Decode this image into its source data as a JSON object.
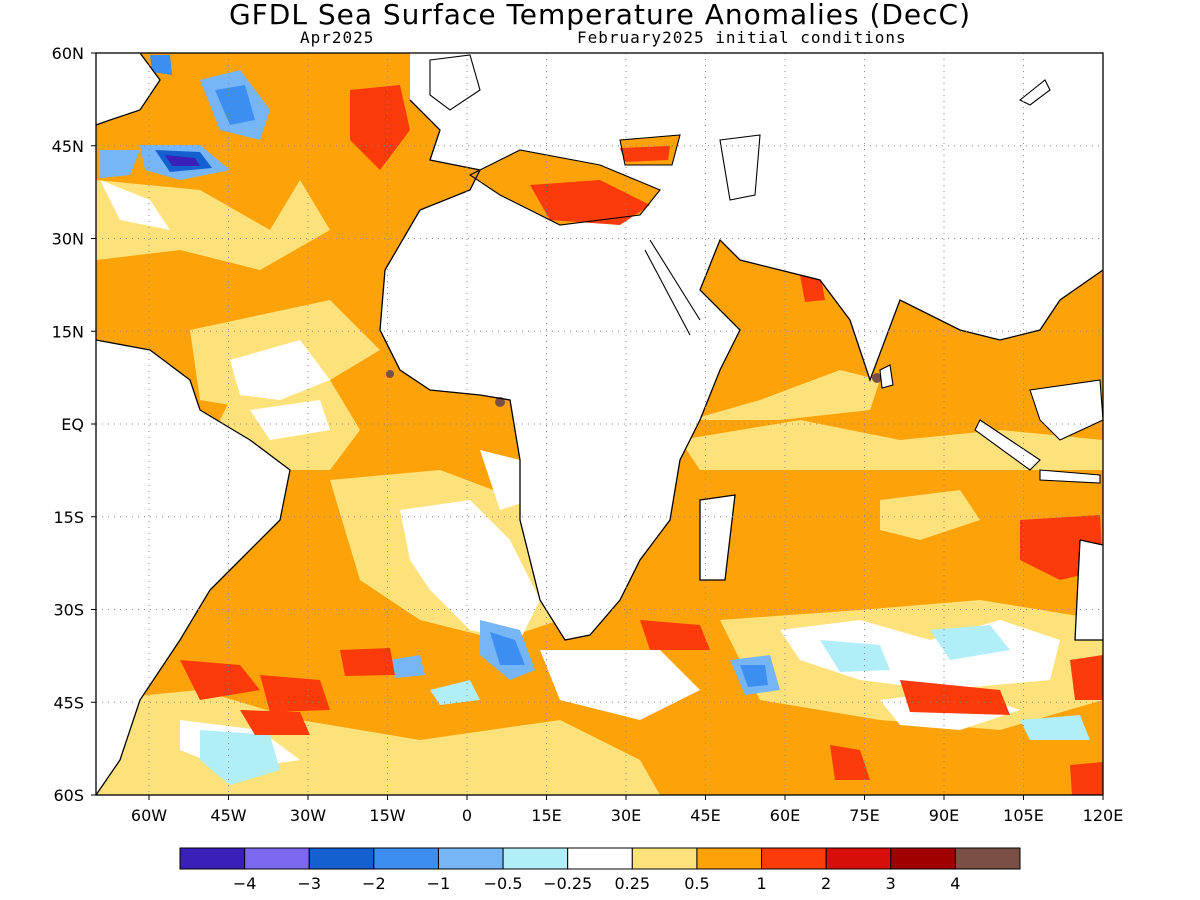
{
  "header": {
    "title": "GFDL Sea Surface Temperature Anomalies (DecC)",
    "forecast_month": "Apr2025",
    "initial_conditions": "February2025 initial conditions"
  },
  "map": {
    "region": "Atlantic and Indian Ocean, 60S-60N, 70W-120E",
    "lat_labels": [
      "60N",
      "45N",
      "30N",
      "15N",
      "EQ",
      "15S",
      "30S",
      "45S",
      "60S"
    ],
    "lon_labels": [
      "60W",
      "45W",
      "30W",
      "15W",
      "0",
      "15E",
      "30E",
      "45E",
      "60E",
      "75E",
      "90E",
      "105E",
      "120E"
    ],
    "grid": "dotted"
  },
  "colorbar": {
    "colors": [
      "#3a20b8",
      "#7b68ee",
      "#1560d0",
      "#3c8ff0",
      "#76b6f6",
      "#b2eef8",
      "#ffffff",
      "#fde27c",
      "#fea20a",
      "#fc3a0a",
      "#d80f08",
      "#a00000",
      "#7a5046"
    ],
    "labels": [
      "−4",
      "−3",
      "−2",
      "−1",
      "−0.5",
      "−0.25",
      "0.25",
      "0.5",
      "1",
      "2",
      "3",
      "4"
    ]
  }
}
